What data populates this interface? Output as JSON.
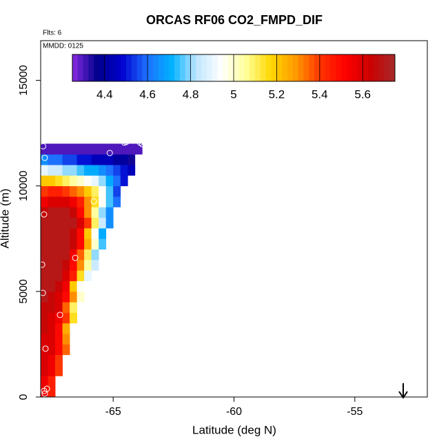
{
  "chart_data": {
    "type": "heatmap",
    "title": "ORCAS RF06 CO2_FMPD_DIF",
    "note_flights": "Flts: 6",
    "note_date": "MMDD: 0125",
    "x_label": "Latitude (deg N)",
    "y_label": "Altitude (m)",
    "xlim": [
      -68,
      -52
    ],
    "ylim": [
      0,
      16880
    ],
    "xticks": [
      -65,
      -60,
      -55
    ],
    "yticks": [
      0,
      5000,
      10000,
      15000
    ],
    "zlim": [
      4.25,
      5.75
    ],
    "zticks": [
      4.4,
      4.6,
      4.8,
      5.0,
      5.2,
      5.4,
      5.6
    ],
    "colorscale": [
      "#8a2be2",
      "#00008b",
      "#0000cd",
      "#1e6fff",
      "#00b2ff",
      "#bfe6ff",
      "#ffffff",
      "#ffff99",
      "#ffd700",
      "#ff9900",
      "#ff3300",
      "#ff0000",
      "#cc0000",
      "#a52a2a"
    ],
    "x": [
      -67.85,
      -67.55,
      -67.25,
      -66.95,
      -66.65,
      -66.35,
      -66.05,
      -65.75,
      -65.45,
      -65.15,
      -64.85,
      -64.55,
      -64.25,
      -63.95
    ],
    "y": [
      250,
      750,
      1250,
      1750,
      2250,
      2750,
      3250,
      3750,
      4250,
      4750,
      5250,
      5750,
      6250,
      6750,
      7250,
      7750,
      8250,
      8750,
      9250,
      9750,
      10250,
      10750,
      11250,
      11750
    ],
    "z": [
      [
        5.55,
        5.45,
        null,
        null,
        null,
        null,
        null,
        null,
        null,
        null,
        null,
        null,
        null,
        null
      ],
      [
        5.55,
        5.45,
        null,
        null,
        null,
        null,
        null,
        null,
        null,
        null,
        null,
        null,
        null,
        null
      ],
      [
        5.6,
        5.55,
        5.4,
        null,
        null,
        null,
        null,
        null,
        null,
        null,
        null,
        null,
        null,
        null
      ],
      [
        5.6,
        5.55,
        5.4,
        null,
        null,
        null,
        null,
        null,
        null,
        null,
        null,
        null,
        null,
        null
      ],
      [
        5.6,
        5.6,
        5.5,
        5.35,
        null,
        null,
        null,
        null,
        null,
        null,
        null,
        null,
        null,
        null
      ],
      [
        5.6,
        5.6,
        5.5,
        5.3,
        null,
        null,
        null,
        null,
        null,
        null,
        null,
        null,
        null,
        null
      ],
      [
        5.65,
        5.6,
        5.5,
        5.25,
        null,
        null,
        null,
        null,
        null,
        null,
        null,
        null,
        null,
        null
      ],
      [
        5.65,
        5.6,
        5.55,
        5.4,
        5.15,
        null,
        null,
        null,
        null,
        null,
        null,
        null,
        null,
        null
      ],
      [
        5.65,
        5.65,
        5.6,
        5.35,
        5.1,
        null,
        null,
        null,
        null,
        null,
        null,
        null,
        null,
        null
      ],
      [
        5.7,
        5.65,
        5.6,
        5.5,
        5.3,
        5.0,
        null,
        null,
        null,
        null,
        null,
        null,
        null,
        null
      ],
      [
        5.7,
        5.7,
        5.65,
        5.55,
        5.2,
        4.95,
        null,
        null,
        null,
        null,
        null,
        null,
        null,
        null
      ],
      [
        5.7,
        5.7,
        5.7,
        5.6,
        5.45,
        5.15,
        4.9,
        null,
        null,
        null,
        null,
        null,
        null,
        null
      ],
      [
        5.7,
        5.7,
        5.7,
        5.65,
        5.5,
        5.3,
        5.05,
        4.85,
        null,
        null,
        null,
        null,
        null,
        null
      ],
      [
        5.7,
        5.7,
        5.7,
        5.7,
        5.55,
        5.35,
        5.1,
        4.8,
        null,
        null,
        null,
        null,
        null,
        null
      ],
      [
        5.7,
        5.7,
        5.7,
        5.7,
        5.65,
        5.5,
        5.25,
        5.0,
        4.75,
        null,
        null,
        null,
        null,
        null
      ],
      [
        5.7,
        5.7,
        5.7,
        5.7,
        5.65,
        5.5,
        5.2,
        4.95,
        4.7,
        null,
        null,
        null,
        null,
        null
      ],
      [
        5.7,
        5.7,
        5.7,
        5.7,
        5.7,
        5.6,
        5.4,
        5.1,
        4.85,
        4.65,
        null,
        null,
        null,
        null
      ],
      [
        5.65,
        5.7,
        5.7,
        5.7,
        5.65,
        5.5,
        5.3,
        5.05,
        4.8,
        4.65,
        null,
        null,
        null,
        null
      ],
      [
        5.55,
        5.6,
        5.6,
        5.6,
        5.55,
        5.45,
        5.3,
        5.15,
        4.95,
        4.75,
        4.6,
        null,
        null,
        null
      ],
      [
        5.4,
        5.45,
        5.45,
        5.4,
        5.35,
        5.3,
        5.2,
        5.1,
        4.95,
        4.75,
        4.55,
        null,
        null,
        null
      ],
      [
        5.2,
        5.2,
        5.15,
        5.1,
        5.05,
        5.0,
        4.95,
        4.9,
        4.8,
        4.7,
        4.6,
        4.5,
        null,
        null
      ],
      [
        4.9,
        4.85,
        4.85,
        4.8,
        4.8,
        4.75,
        4.7,
        4.7,
        4.65,
        4.6,
        4.55,
        4.5,
        4.45,
        null
      ],
      [
        4.65,
        4.6,
        4.6,
        4.55,
        4.55,
        4.5,
        4.5,
        4.45,
        4.45,
        4.45,
        4.4,
        4.4,
        4.35,
        null
      ],
      [
        4.3,
        4.3,
        4.3,
        4.3,
        4.3,
        4.3,
        4.3,
        4.3,
        4.3,
        4.3,
        4.3,
        4.3,
        4.3,
        4.3
      ]
    ],
    "track": {
      "x": [
        -67.9,
        -67.83,
        -65.14,
        -64.54,
        -64.46,
        -63.89,
        -63.8,
        -65.8,
        -67.86,
        -66.57,
        -67.94,
        -67.91,
        -67.2,
        -67.8,
        -67.74,
        -67.86,
        -67.83
      ],
      "y": [
        11880,
        11330,
        11560,
        12050,
        12080,
        12050,
        11980,
        9270,
        8650,
        6590,
        6270,
        4930,
        3890,
        2290,
        390,
        290,
        160
      ],
      "color": "#ffffff"
    }
  }
}
